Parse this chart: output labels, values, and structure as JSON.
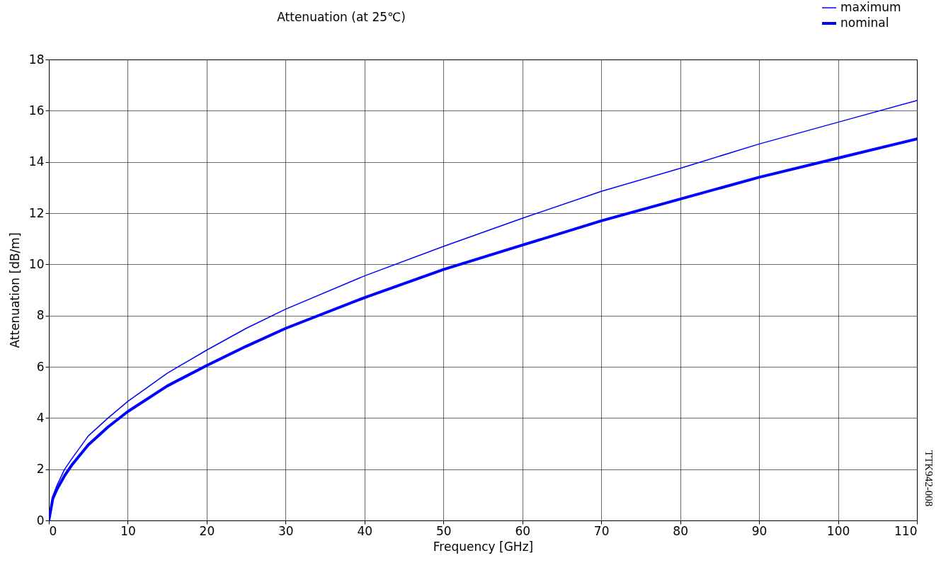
{
  "chart_data": {
    "type": "line",
    "title": "Attenuation (at 25℃)",
    "xlabel": "Frequency [GHz]",
    "ylabel": "Attenuation [dB/m]",
    "annotations": [
      "TTK942-008"
    ],
    "x": [
      0,
      0.5,
      1,
      2,
      3,
      5,
      7.5,
      10,
      15,
      20,
      25,
      30,
      40,
      50,
      60,
      70,
      80,
      90,
      100,
      110
    ],
    "series": [
      {
        "name": "maximum",
        "color": "#0000ff",
        "line_style": "solid",
        "values": [
          0,
          0.95,
          1.35,
          2.0,
          2.45,
          3.3,
          4.0,
          4.65,
          5.75,
          6.65,
          7.5,
          8.25,
          9.55,
          10.7,
          11.8,
          12.85,
          13.75,
          14.7,
          15.55,
          16.4
        ]
      },
      {
        "name": "nominal",
        "color": "#0000ff",
        "line_style": "solid",
        "values": [
          0,
          0.85,
          1.2,
          1.75,
          2.2,
          2.95,
          3.65,
          4.25,
          5.25,
          6.05,
          6.8,
          7.5,
          8.7,
          9.8,
          10.75,
          11.7,
          12.55,
          13.4,
          14.15,
          14.9
        ]
      }
    ],
    "xlim": [
      0,
      110
    ],
    "xticks": [
      0,
      10,
      20,
      30,
      40,
      50,
      60,
      70,
      80,
      90,
      100,
      110
    ],
    "ylim": [
      0,
      18
    ],
    "yticks": [
      0,
      2,
      4,
      6,
      8,
      10,
      12,
      14,
      16,
      18
    ],
    "grid": true,
    "legend": "top right",
    "marker": "none"
  }
}
